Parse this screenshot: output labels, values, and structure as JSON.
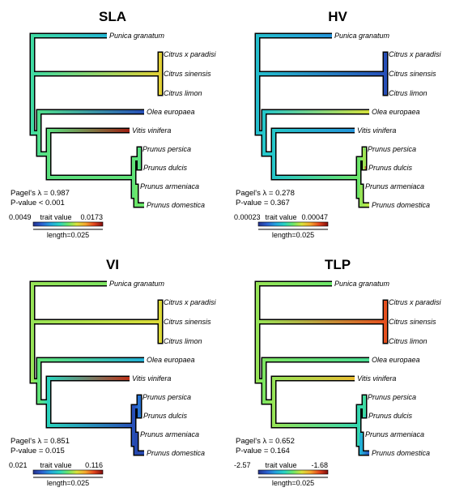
{
  "colors": {
    "colormap": [
      "#23328d",
      "#2a5fd0",
      "#22a3dc",
      "#27d3c2",
      "#6be66a",
      "#d9e13a",
      "#f5a62d",
      "#e3441d",
      "#7f0c0c"
    ],
    "outline": "#000000"
  },
  "panels": [
    {
      "title": "SLA",
      "species": [
        "Punica granatum",
        "Citrus x paradisi",
        "Citrus sinensis",
        "Citrus limon",
        "Olea europaea",
        "Vitis vinifera",
        "Prunus persica",
        "Prunus dulcis",
        "Prunus armeniaca",
        "Prunus domestica"
      ],
      "lambda_text": "Pagel's λ = 0.987",
      "pvalue_text": "P-value < 0.001",
      "legend_min": "0.0049",
      "legend_mid": "trait value",
      "legend_max": "0.0173",
      "scale_text": "length=0.025",
      "tip_values": [
        0.3,
        0.66,
        0.66,
        0.66,
        0.08,
        0.96,
        0.45,
        0.47,
        0.5,
        0.5
      ],
      "node_values": {
        "root": 0.42,
        "citrus": 0.66,
        "nodeA": 0.45,
        "nodeB": 0.47,
        "prunus": 0.48,
        "persdulc": 0.47,
        "armdom": 0.5
      }
    },
    {
      "title": "HV",
      "species": [
        "Punica granatum",
        "Citrus x paradisi",
        "Citrus sinensis",
        "Citrus limon",
        "Olea europaea",
        "Vitis vinifera",
        "Prunus persica",
        "Prunus dulcis",
        "Prunus armeniaca",
        "Prunus domestica"
      ],
      "lambda_text": "Pagel's λ = 0.278",
      "pvalue_text": "P-value = 0.367",
      "legend_min": "0.00023",
      "legend_mid": "trait value",
      "legend_max": "0.00047",
      "scale_text": "length=0.025",
      "tip_values": [
        0.22,
        0.04,
        0.04,
        0.04,
        0.62,
        0.22,
        0.35,
        0.92,
        0.5,
        0.6
      ],
      "node_values": {
        "root": 0.32,
        "citrus": 0.08,
        "nodeA": 0.34,
        "nodeB": 0.34,
        "prunus": 0.5,
        "persdulc": 0.56,
        "armdom": 0.55
      }
    },
    {
      "title": "VI",
      "species": [
        "Punica granatum",
        "Citrus x paradisi",
        "Citrus sinensis",
        "Citrus limon",
        "Olea europaea",
        "Vitis vinifera",
        "Prunus persica",
        "Prunus dulcis",
        "Prunus armeniaca",
        "Prunus domestica"
      ],
      "lambda_text": "Pagel's λ = 0.851",
      "pvalue_text": "P-value = 0.015",
      "legend_min": "0.021",
      "legend_mid": "trait value",
      "legend_max": "0.116",
      "scale_text": "length=0.025",
      "tip_values": [
        0.52,
        0.66,
        0.64,
        0.68,
        0.28,
        0.92,
        0.18,
        0.22,
        0.06,
        0.06
      ],
      "node_values": {
        "root": 0.55,
        "citrus": 0.64,
        "nodeA": 0.48,
        "nodeB": 0.38,
        "prunus": 0.08,
        "persdulc": 0.16,
        "armdom": 0.06
      }
    },
    {
      "title": "TLP",
      "species": [
        "Punica granatum",
        "Citrus x paradisi",
        "Citrus sinensis",
        "Citrus limon",
        "Olea europaea",
        "Vitis vinifera",
        "Prunus persica",
        "Prunus dulcis",
        "Prunus armeniaca",
        "Prunus domestica"
      ],
      "lambda_text": "Pagel's λ = 0.652",
      "pvalue_text": "P-value = 0.164",
      "legend_min": "-2.57",
      "legend_mid": "trait value",
      "legend_max": "-1.68",
      "scale_text": "length=0.025",
      "tip_values": [
        0.5,
        0.88,
        0.88,
        0.86,
        0.44,
        0.7,
        0.48,
        0.32,
        0.38,
        0.08
      ],
      "node_values": {
        "root": 0.55,
        "citrus": 0.86,
        "nodeA": 0.52,
        "nodeB": 0.55,
        "prunus": 0.4,
        "persdulc": 0.42,
        "armdom": 0.28
      }
    }
  ]
}
